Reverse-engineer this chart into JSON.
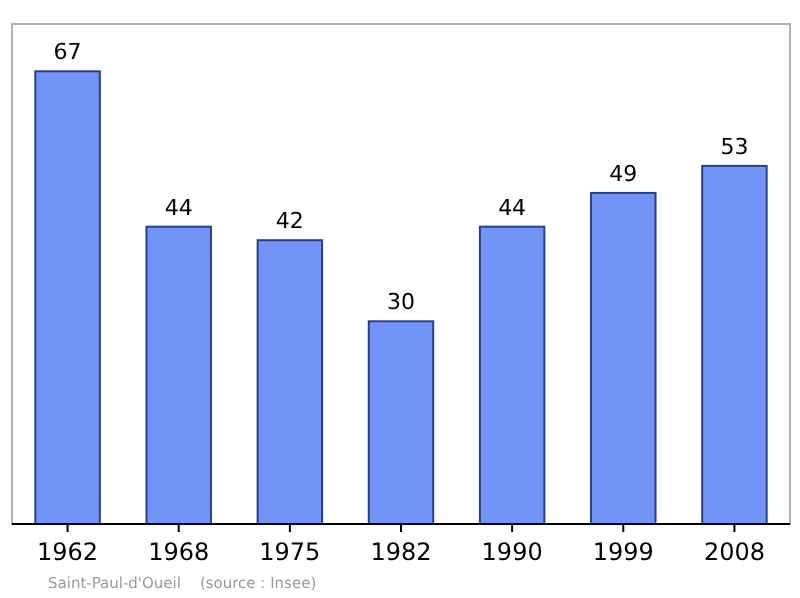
{
  "chart_data": {
    "type": "bar",
    "categories": [
      "1962",
      "1968",
      "1975",
      "1982",
      "1990",
      "1999",
      "2008"
    ],
    "values": [
      67,
      44,
      42,
      30,
      44,
      49,
      53
    ],
    "color": "#7394f7",
    "ylim": [
      0,
      74
    ],
    "tick_labels": "x",
    "data_labels": true,
    "annotations": [
      "Saint-Paul-d'Oueil    (source : Insee)"
    ]
  }
}
